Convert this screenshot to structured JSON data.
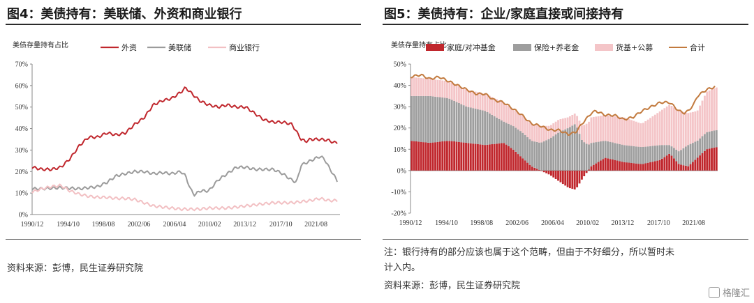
{
  "charts": [
    {
      "title": "图4：美债持有：美联储、外资和商业银行",
      "ylabel": "美债存量持有占比",
      "source": "资料来源：彭博，民生证券研究院",
      "note": ""
    },
    {
      "title": "图5：美债持有：企业/家庭直接或间接持有",
      "ylabel": "美债存量持有占比",
      "note": "注：银行持有的部分应该也属于这个范畴，但由于不好细分，所以暂时未计入内。",
      "note_line1": "注：银行持有的部分应该也属于这个范畴，但由于不好细分，所以暂时未",
      "note_line2": "计入内。",
      "source": "资料来源：彭博，民生证券研究院"
    }
  ],
  "watermark": "格隆汇",
  "colors": {
    "foreign": "#c0272d",
    "fed": "#9b9b9b",
    "bank": "#f2c0c3",
    "household": "#c0272d",
    "insurance": "#9e9e9e",
    "mmf": "#f4c5c8",
    "total": "#c27a3e"
  },
  "chart_data": [
    {
      "type": "line",
      "x_ticks": [
        "1990/12",
        "1994/10",
        "1998/08",
        "2002/06",
        "2006/04",
        "2010/02",
        "2013/12",
        "2017/10",
        "2021/08"
      ],
      "x_range": [
        1990.9,
        2024.2
      ],
      "y_ticks": [
        "0%",
        "10%",
        "20%",
        "30%",
        "40%",
        "50%",
        "60%",
        "70%"
      ],
      "ylim": [
        0,
        70
      ],
      "legend_position": "top",
      "series": [
        {
          "name": "外资",
          "color": "#c0272d",
          "x": [
            1990.9,
            1992,
            1993,
            1994,
            1995,
            1996,
            1997,
            1998,
            1999,
            2000,
            2001,
            2002,
            2003,
            2004,
            2005,
            2006,
            2007,
            2007.5,
            2008,
            2009,
            2010,
            2011,
            2012,
            2013,
            2014,
            2015,
            2016,
            2017,
            2018,
            2019,
            2020,
            2020.5,
            2021,
            2022,
            2023,
            2023.5,
            2024
          ],
          "y": [
            22,
            21,
            21,
            22,
            26,
            32,
            36,
            36,
            38,
            37,
            38,
            42,
            45,
            51,
            53,
            54,
            57,
            59,
            57,
            53,
            51,
            50,
            51,
            50,
            50,
            47,
            44,
            43,
            43,
            42,
            35,
            34,
            35,
            35,
            34.5,
            33.5,
            33.5
          ]
        },
        {
          "name": "美联储",
          "color": "#9b9b9b",
          "x": [
            1990.9,
            1992,
            1994,
            1996,
            1998,
            1999,
            2000,
            2001,
            2002,
            2003,
            2004,
            2005,
            2006,
            2007,
            2007.5,
            2008,
            2008.5,
            2009,
            2010,
            2011,
            2012,
            2013,
            2014,
            2015,
            2016,
            2017,
            2018,
            2019,
            2019.5,
            2020,
            2021,
            2022,
            2022.5,
            2023,
            2024
          ],
          "y": [
            12,
            12,
            12.5,
            12,
            13,
            15,
            18,
            19,
            20,
            20,
            19,
            19.5,
            19,
            20,
            18,
            12,
            9,
            11,
            11,
            16,
            19,
            22,
            22,
            21,
            21,
            21,
            19,
            16,
            15,
            23,
            25,
            27,
            26,
            22,
            15
          ]
        },
        {
          "name": "商业银行",
          "color": "#f2c0c3",
          "x": [
            1990.9,
            1992,
            1993,
            1994,
            1995,
            1996,
            1997,
            1998,
            1999,
            2000,
            2001,
            2002,
            2003,
            2004,
            2005,
            2006,
            2007,
            2008,
            2009,
            2010,
            2011,
            2012,
            2013,
            2014,
            2015,
            2016,
            2017,
            2018,
            2019,
            2020,
            2021,
            2022,
            2023,
            2024
          ],
          "y": [
            10.5,
            12,
            13,
            13.5,
            11,
            9.5,
            8.5,
            8,
            8,
            7.5,
            7.5,
            7,
            5.5,
            4,
            3.5,
            3,
            2.5,
            2.5,
            2.5,
            3,
            3,
            3,
            3.5,
            4,
            4.5,
            5,
            5.5,
            5.5,
            5.5,
            6,
            6.5,
            7.5,
            6.5,
            6.5
          ]
        }
      ]
    },
    {
      "type": "bar",
      "x_ticks": [
        "1990/12",
        "1994/10",
        "1998/08",
        "2002/06",
        "2006/04",
        "2010/02",
        "2013/12",
        "2017/10",
        "2021/08"
      ],
      "x_range": [
        1990.9,
        2024.2
      ],
      "y_ticks": [
        "-20%",
        "-10%",
        "0%",
        "10%",
        "20%",
        "30%",
        "40%",
        "50%"
      ],
      "ylim": [
        -20,
        50
      ],
      "stacked": true,
      "legend_position": "top",
      "series": [
        {
          "name": "家庭/对冲基金",
          "color": "#c0272d",
          "x": [
            1990.9,
            1993,
            1995,
            1997,
            1999,
            2001,
            2002,
            2003,
            2004,
            2005,
            2006,
            2007,
            2008,
            2008.8,
            2009.5,
            2010.5,
            2012,
            2014,
            2016,
            2018,
            2019,
            2020,
            2021,
            2022,
            2023,
            2024
          ],
          "y": [
            14,
            13,
            14,
            13,
            12,
            13,
            10,
            6,
            2,
            0,
            -2,
            -5,
            -8,
            -9,
            -4,
            2,
            6,
            4,
            3,
            5,
            8,
            3,
            2,
            6,
            10,
            11
          ]
        },
        {
          "name": "保险+养老金",
          "color": "#9e9e9e",
          "x": [
            1990.9,
            1993,
            1995,
            1997,
            1999,
            2001,
            2002,
            2003,
            2004,
            2005,
            2006,
            2007,
            2008,
            2008.8,
            2009.5,
            2010.5,
            2012,
            2014,
            2016,
            2018,
            2019,
            2020,
            2021,
            2022,
            2023,
            2024
          ],
          "y": [
            21,
            22,
            20,
            17,
            16,
            10,
            11,
            12,
            12,
            13,
            15,
            18,
            20,
            22,
            14,
            11,
            8,
            8,
            8,
            7,
            4,
            6,
            10,
            8,
            8,
            8
          ]
        },
        {
          "name": "货基+公募",
          "color": "#f4c5c8",
          "x": [
            1990.9,
            1993,
            1995,
            1997,
            1999,
            2001,
            2002,
            2003,
            2004,
            2005,
            2006,
            2007,
            2008,
            2008.8,
            2009.5,
            2010.5,
            2012,
            2014,
            2016,
            2018,
            2019,
            2020,
            2021,
            2022,
            2023,
            2024
          ],
          "y": [
            9,
            8,
            8,
            8,
            8,
            9,
            8,
            8,
            8,
            8,
            6,
            6,
            5,
            5,
            7,
            12,
            12,
            13,
            11,
            16,
            19,
            19,
            15,
            14,
            19,
            20
          ]
        }
      ],
      "line": {
        "name": "合计",
        "color": "#c27a3e",
        "x": [
          1990.9,
          1992,
          1993,
          1994,
          1995,
          1996,
          1997,
          1998,
          1999,
          2000,
          2001,
          2002,
          2003,
          2004,
          2005,
          2006,
          2007,
          2008,
          2008.8,
          2009.5,
          2010.5,
          2011,
          2012,
          2013,
          2014,
          2015,
          2016,
          2017,
          2018,
          2019,
          2020,
          2020.6,
          2021,
          2021.6,
          2022,
          2023,
          2024
        ],
        "y": [
          44,
          45,
          43,
          44,
          42,
          40,
          38,
          36,
          36,
          33,
          32,
          29,
          26,
          22,
          21,
          19,
          19,
          17,
          18,
          22,
          27,
          28,
          26,
          26,
          24,
          25,
          28,
          30,
          32,
          32,
          28,
          27,
          28,
          31,
          35,
          38,
          39.5
        ]
      }
    }
  ]
}
